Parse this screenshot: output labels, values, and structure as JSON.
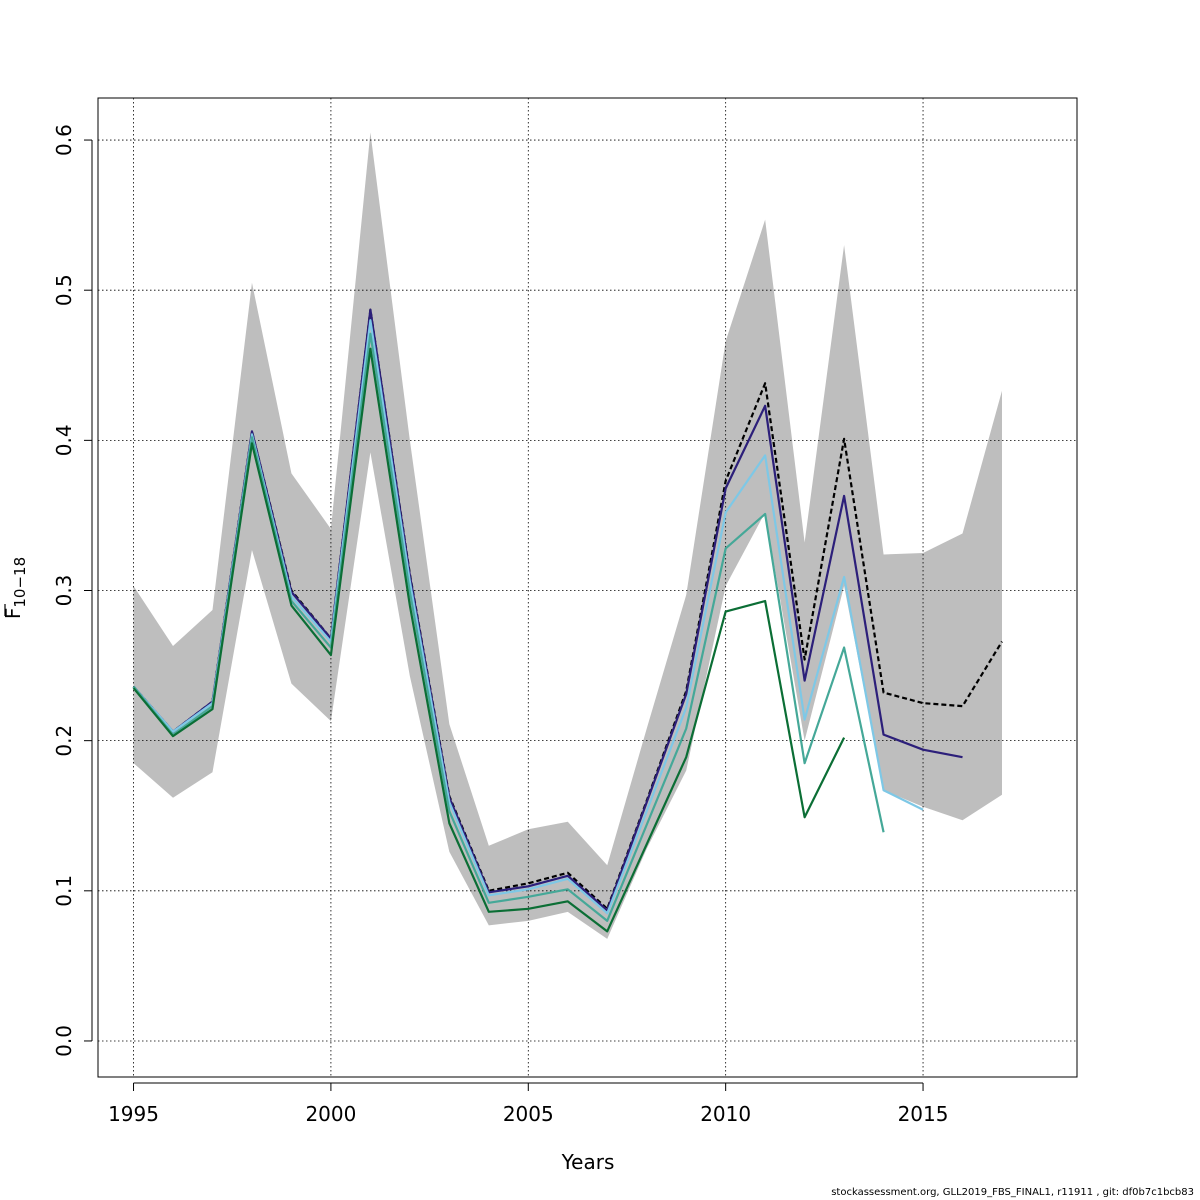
{
  "chart_data": {
    "type": "line",
    "xlabel": "Years",
    "ylabel": "F",
    "ylabel_subscript": "10−18",
    "xlim": [
      1994.1,
      2018.9
    ],
    "ylim": [
      -0.024,
      0.628
    ],
    "x_ticks": [
      1995,
      2000,
      2005,
      2010,
      2015
    ],
    "y_ticks": [
      0.0,
      0.1,
      0.2,
      0.3,
      0.4,
      0.5,
      0.6
    ],
    "x_tick_labels": [
      "1995",
      "2000",
      "2005",
      "2010",
      "2015"
    ],
    "y_tick_labels": [
      "0.0",
      "0.1",
      "0.2",
      "0.3",
      "0.4",
      "0.5",
      "0.6"
    ],
    "grid": true,
    "band": {
      "color": "#bebebe",
      "x": [
        1995,
        1996,
        1997,
        1998,
        1999,
        2000,
        2001,
        2002,
        2003,
        2004,
        2005,
        2006,
        2007,
        2008,
        2009,
        2010,
        2011,
        2012,
        2013,
        2014,
        2015,
        2016,
        2017
      ],
      "upper": [
        0.303,
        0.263,
        0.287,
        0.505,
        0.378,
        0.341,
        0.605,
        0.4,
        0.211,
        0.13,
        0.141,
        0.146,
        0.117,
        0.208,
        0.297,
        0.466,
        0.547,
        0.332,
        0.53,
        0.324,
        0.325,
        0.338,
        0.433
      ],
      "lower": [
        0.185,
        0.162,
        0.179,
        0.327,
        0.238,
        0.213,
        0.392,
        0.243,
        0.126,
        0.077,
        0.08,
        0.086,
        0.068,
        0.128,
        0.18,
        0.303,
        0.352,
        0.2,
        0.303,
        0.167,
        0.156,
        0.147,
        0.164
      ]
    },
    "series": [
      {
        "color": "#000000",
        "dashed": true,
        "x": [
          1995,
          1996,
          1997,
          1998,
          1999,
          2000,
          2001,
          2002,
          2003,
          2004,
          2005,
          2006,
          2007,
          2008,
          2009,
          2010,
          2011,
          2012,
          2013,
          2014,
          2015,
          2016,
          2017
        ],
        "values": [
          0.236,
          0.206,
          0.226,
          0.406,
          0.3,
          0.268,
          0.487,
          0.311,
          0.163,
          0.1,
          0.105,
          0.112,
          0.088,
          0.16,
          0.233,
          0.373,
          0.438,
          0.254,
          0.401,
          0.232,
          0.225,
          0.223,
          0.266
        ]
      },
      {
        "color": "#2c1f7a",
        "dashed": false,
        "x": [
          1995,
          1996,
          1997,
          1998,
          1999,
          2000,
          2001,
          2002,
          2003,
          2004,
          2005,
          2006,
          2007,
          2008,
          2009,
          2010,
          2011,
          2012,
          2013,
          2014,
          2015,
          2016
        ],
        "values": [
          0.236,
          0.206,
          0.226,
          0.406,
          0.299,
          0.268,
          0.487,
          0.31,
          0.162,
          0.099,
          0.103,
          0.11,
          0.087,
          0.159,
          0.231,
          0.368,
          0.423,
          0.24,
          0.363,
          0.204,
          0.194,
          0.189
        ]
      },
      {
        "color": "#7ec8e6",
        "dashed": false,
        "x": [
          1995,
          1996,
          1997,
          1998,
          1999,
          2000,
          2001,
          2002,
          2003,
          2004,
          2005,
          2006,
          2007,
          2008,
          2009,
          2010,
          2011,
          2012,
          2013,
          2014,
          2015
        ],
        "values": [
          0.236,
          0.206,
          0.225,
          0.404,
          0.296,
          0.266,
          0.48,
          0.306,
          0.159,
          0.097,
          0.101,
          0.108,
          0.085,
          0.153,
          0.222,
          0.352,
          0.39,
          0.214,
          0.309,
          0.167,
          0.154
        ]
      },
      {
        "color": "#45a898",
        "dashed": false,
        "x": [
          1995,
          1996,
          1997,
          1998,
          1999,
          2000,
          2001,
          2002,
          2003,
          2004,
          2005,
          2006,
          2007,
          2008,
          2009,
          2010,
          2011,
          2012,
          2013,
          2014
        ],
        "values": [
          0.236,
          0.204,
          0.223,
          0.402,
          0.293,
          0.262,
          0.471,
          0.299,
          0.153,
          0.092,
          0.096,
          0.101,
          0.08,
          0.144,
          0.208,
          0.328,
          0.351,
          0.185,
          0.262,
          0.139
        ]
      },
      {
        "color": "#0b6e35",
        "dashed": false,
        "x": [
          1995,
          1996,
          1997,
          1998,
          1999,
          2000,
          2001,
          2002,
          2003,
          2004,
          2005,
          2006,
          2007,
          2008,
          2009,
          2010,
          2011,
          2012,
          2013
        ],
        "values": [
          0.235,
          0.203,
          0.221,
          0.398,
          0.29,
          0.257,
          0.461,
          0.29,
          0.145,
          0.086,
          0.088,
          0.093,
          0.073,
          0.131,
          0.189,
          0.286,
          0.293,
          0.149,
          0.202
        ]
      }
    ]
  },
  "footer": {
    "text": "stockassessment.org, GLL2019_FBS_FINAL1, r11911 , git: df0b7c1bcb83"
  }
}
